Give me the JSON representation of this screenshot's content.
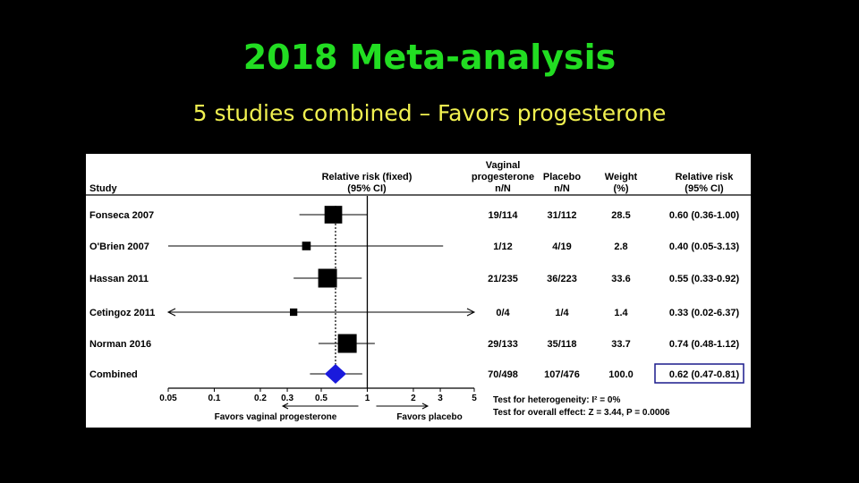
{
  "slide": {
    "title": "2018 Meta-analysis",
    "subtitle": "5 studies combined – Favors progesterone"
  },
  "chart_data": {
    "type": "forest",
    "x_scale": "log",
    "xlim": [
      0.05,
      5
    ],
    "ticks": [
      0.05,
      0.1,
      0.2,
      0.3,
      0.5,
      1,
      2,
      3,
      5
    ],
    "tick_labels": [
      "0.05",
      "0.1",
      "0.2",
      "0.3",
      "0.5",
      "1",
      "2",
      "3",
      "5"
    ],
    "reference_line": 1,
    "pooled_line": 0.62,
    "headers": {
      "study": "Study",
      "rr_plot": [
        "Relative risk (fixed)",
        "(95% CI)"
      ],
      "vaginal": [
        "Vaginal",
        "progesterone",
        "n/N"
      ],
      "placebo": [
        "Placebo",
        "n/N"
      ],
      "weight": [
        "Weight",
        "(%)"
      ],
      "rr": [
        "Relative risk",
        "(95% CI)"
      ]
    },
    "studies": [
      {
        "name": "Fonseca 2007",
        "rr": 0.6,
        "lo": 0.36,
        "hi": 1.0,
        "weight": 28.5,
        "vaginal": "19/114",
        "placebo": "31/112",
        "weight_text": "28.5",
        "rr_text": "0.60 (0.36-1.00)"
      },
      {
        "name": "O'Brien 2007",
        "rr": 0.4,
        "lo": 0.05,
        "hi": 3.13,
        "weight": 2.8,
        "vaginal": "1/12",
        "placebo": "4/19",
        "weight_text": "2.8",
        "rr_text": "0.40 (0.05-3.13)"
      },
      {
        "name": "Hassan 2011",
        "rr": 0.55,
        "lo": 0.33,
        "hi": 0.92,
        "weight": 33.6,
        "vaginal": "21/235",
        "placebo": "36/223",
        "weight_text": "33.6",
        "rr_text": "0.55 (0.33-0.92)"
      },
      {
        "name": "Cetingoz 2011",
        "rr": 0.33,
        "lo": 0.02,
        "hi": 6.37,
        "weight": 1.4,
        "vaginal": "0/4",
        "placebo": "1/4",
        "weight_text": "1.4",
        "rr_text": "0.33 (0.02-6.37)"
      },
      {
        "name": "Norman 2016",
        "rr": 0.74,
        "lo": 0.48,
        "hi": 1.12,
        "weight": 33.7,
        "vaginal": "29/133",
        "placebo": "35/118",
        "weight_text": "33.7",
        "rr_text": "0.74 (0.48-1.12)"
      }
    ],
    "combined": {
      "name": "Combined",
      "rr": 0.62,
      "lo": 0.47,
      "hi": 0.81,
      "vaginal": "70/498",
      "placebo": "107/476",
      "weight_text": "100.0",
      "rr_text": "0.62 (0.47-0.81)"
    },
    "favors_left": "Favors  vaginal progesterone",
    "favors_right": "Favors placebo",
    "heterogeneity": "Test for heterogeneity: I² = 0%",
    "overall_effect": "Test for overall effect: Z = 3.44, P = 0.0006",
    "colors": {
      "diamond": "#1a1adc",
      "highlight_box": "#1a1a8c",
      "marker": "#000000"
    }
  }
}
